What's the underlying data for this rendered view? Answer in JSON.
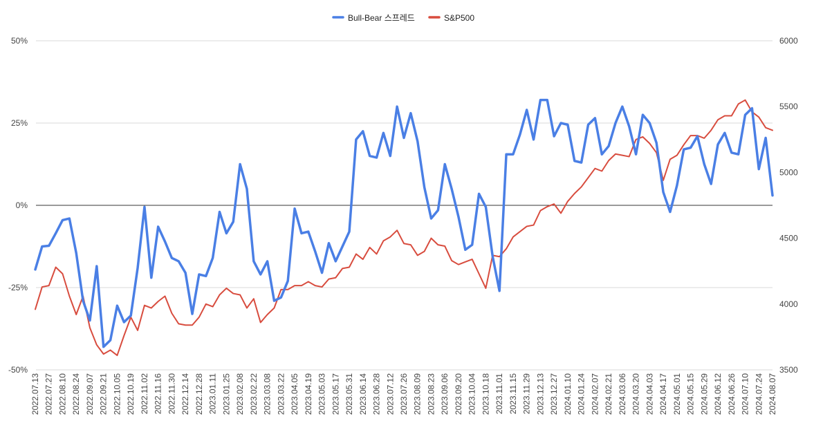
{
  "chart_data": {
    "type": "line",
    "title": "",
    "x": [
      "2022.07.13",
      "2022.07.20",
      "2022.07.27",
      "2022.08.03",
      "2022.08.10",
      "2022.08.17",
      "2022.08.24",
      "2022.08.31",
      "2022.09.07",
      "2022.09.14",
      "2022.09.21",
      "2022.09.28",
      "2022.10.05",
      "2022.10.12",
      "2022.10.19",
      "2022.10.26",
      "2022.11.02",
      "2022.11.09",
      "2022.11.16",
      "2022.11.23",
      "2022.11.30",
      "2022.12.07",
      "2022.12.14",
      "2022.12.21",
      "2022.12.28",
      "2023.01.04",
      "2023.01.11",
      "2023.01.18",
      "2023.01.25",
      "2023.02.01",
      "2023.02.08",
      "2023.02.15",
      "2023.02.22",
      "2023.03.01",
      "2023.03.08",
      "2023.03.15",
      "2023.03.22",
      "2023.03.29",
      "2023.04.05",
      "2023.04.12",
      "2023.04.19",
      "2023.04.26",
      "2023.05.03",
      "2023.05.10",
      "2023.05.17",
      "2023.05.24",
      "2023.05.31",
      "2023.06.07",
      "2023.06.14",
      "2023.06.21",
      "2023.06.28",
      "2023.07.05",
      "2023.07.12",
      "2023.07.19",
      "2023.07.26",
      "2023.08.02",
      "2023.08.09",
      "2023.08.16",
      "2023.08.23",
      "2023.08.30",
      "2023.09.06",
      "2023.09.13",
      "2023.09.20",
      "2023.09.27",
      "2023.10.04",
      "2023.10.11",
      "2023.10.18",
      "2023.10.25",
      "2023.11.01",
      "2023.11.08",
      "2023.11.15",
      "2023.11.22",
      "2023.11.29",
      "2023.12.06",
      "2023.12.13",
      "2023.12.20",
      "2023.12.27",
      "2024.01.03",
      "2024.01.10",
      "2024.01.17",
      "2024.01.24",
      "2024.01.31",
      "2024.02.07",
      "2024.02.14",
      "2024.02.21",
      "2024.02.28",
      "2024.03.06",
      "2024.03.13",
      "2024.03.20",
      "2024.03.27",
      "2024.04.03",
      "2024.04.10",
      "2024.04.17",
      "2024.04.24",
      "2024.05.01",
      "2024.05.08",
      "2024.05.15",
      "2024.05.22",
      "2024.05.29",
      "2024.06.05",
      "2024.06.12",
      "2024.06.19",
      "2024.06.26",
      "2024.07.03",
      "2024.07.10",
      "2024.07.17",
      "2024.07.24",
      "2024.07.31",
      "2024.08.07"
    ],
    "series": [
      {
        "name": "Bull-Bear 스프레드",
        "axis": "left",
        "color": "#4A7FE5",
        "values": [
          -19.5,
          -12.5,
          -12.3,
          -8.5,
          -4.5,
          -4,
          -14.5,
          -29,
          -35,
          -18.5,
          -43,
          -41,
          -30.5,
          -35.5,
          -33.5,
          -19,
          -0.5,
          -22,
          -6.5,
          -11,
          -16,
          -17,
          -20.5,
          -33,
          -21,
          -21.5,
          -16,
          -2,
          -8.5,
          -5,
          12.5,
          5,
          -17,
          -21,
          -17,
          -29,
          -28,
          -23,
          -1,
          -8.5,
          -8,
          -14,
          -20.5,
          -11.5,
          -17,
          -12.5,
          -8,
          20,
          22.5,
          15,
          14.5,
          22,
          15,
          30,
          20.5,
          28,
          19.5,
          5.5,
          -4,
          -1.5,
          12.5,
          5,
          -3.5,
          -13.5,
          -12,
          3.5,
          -0.5,
          -15.5,
          -26,
          15.5,
          15.5,
          21.5,
          29,
          20,
          32,
          32,
          21,
          25,
          24.5,
          13.5,
          13,
          24.5,
          26.5,
          15.5,
          18,
          25,
          30,
          24,
          15.5,
          27.5,
          25,
          19,
          4,
          -2,
          6,
          17,
          17.5,
          21,
          12.5,
          6.5,
          18.5,
          22,
          16,
          15.5,
          27.5,
          29.5,
          11,
          20.5,
          3
        ]
      },
      {
        "name": "S&P500",
        "axis": "right",
        "color": "#D84C3E",
        "values": [
          3960,
          4130,
          4140,
          4280,
          4230,
          4060,
          3920,
          4060,
          3820,
          3690,
          3620,
          3650,
          3610,
          3760,
          3900,
          3800,
          3990,
          3970,
          4020,
          4060,
          3930,
          3850,
          3840,
          3840,
          3900,
          4000,
          3980,
          4070,
          4120,
          4080,
          4070,
          3970,
          4040,
          3860,
          3920,
          3970,
          4110,
          4110,
          4140,
          4140,
          4170,
          4140,
          4130,
          4190,
          4200,
          4270,
          4280,
          4380,
          4340,
          4430,
          4380,
          4480,
          4510,
          4560,
          4460,
          4450,
          4370,
          4400,
          4500,
          4450,
          4440,
          4330,
          4300,
          4320,
          4340,
          4230,
          4120,
          4370,
          4360,
          4420,
          4510,
          4550,
          4590,
          4600,
          4710,
          4740,
          4760,
          4690,
          4780,
          4840,
          4890,
          4960,
          5030,
          5010,
          5090,
          5140,
          5130,
          5120,
          5250,
          5270,
          5220,
          5150,
          4940,
          5100,
          5130,
          5210,
          5280,
          5280,
          5260,
          5320,
          5400,
          5430,
          5430,
          5520,
          5550,
          5460,
          5420,
          5340,
          5320
        ]
      }
    ],
    "y_left": {
      "min": -50,
      "max": 50,
      "ticks": [
        -50,
        -25,
        0,
        25,
        50
      ],
      "tick_labels": [
        "-50%",
        "-25%",
        "0%",
        "25%",
        "50%"
      ]
    },
    "y_right": {
      "min": 3500,
      "max": 6000,
      "ticks": [
        3500,
        4000,
        4500,
        5000,
        5500,
        6000
      ],
      "tick_labels": [
        "3500",
        "4000",
        "4500",
        "5000",
        "5500",
        "6000"
      ]
    },
    "x_tick_labels": [
      "2022.07.13",
      "2022.07.27",
      "2022.08.10",
      "2022.08.24",
      "2022.09.07",
      "2022.09.21",
      "2022.10.05",
      "2022.10.19",
      "2022.11.02",
      "2022.11.16",
      "2022.11.30",
      "2022.12.14",
      "2022.12.28",
      "2023.01.11",
      "2023.01.25",
      "2023.02.08",
      "2023.02.22",
      "2023.03.08",
      "2023.03.22",
      "2023.04.05",
      "2023.04.19",
      "2023.05.03",
      "2023.05.17",
      "2023.05.31",
      "2023.06.14",
      "2023.06.28",
      "2023.07.12",
      "2023.07.26",
      "2023.08.09",
      "2023.08.23",
      "2023.09.06",
      "2023.09.20",
      "2023.10.04",
      "2023.10.18",
      "2023.11.01",
      "2023.11.15",
      "2023.11.29",
      "2023.12.13",
      "2023.12.27",
      "2024.01.10",
      "2024.01.24",
      "2024.02.07",
      "2024.02.21",
      "2024.03.06",
      "2024.03.20",
      "2024.04.03",
      "2024.04.17",
      "2024.05.01",
      "2024.05.15",
      "2024.05.29",
      "2024.06.12",
      "2024.06.26",
      "2024.07.10",
      "2024.07.24",
      "2024.08.07"
    ],
    "grid": true,
    "zero_line": true,
    "legend": "top-center"
  }
}
